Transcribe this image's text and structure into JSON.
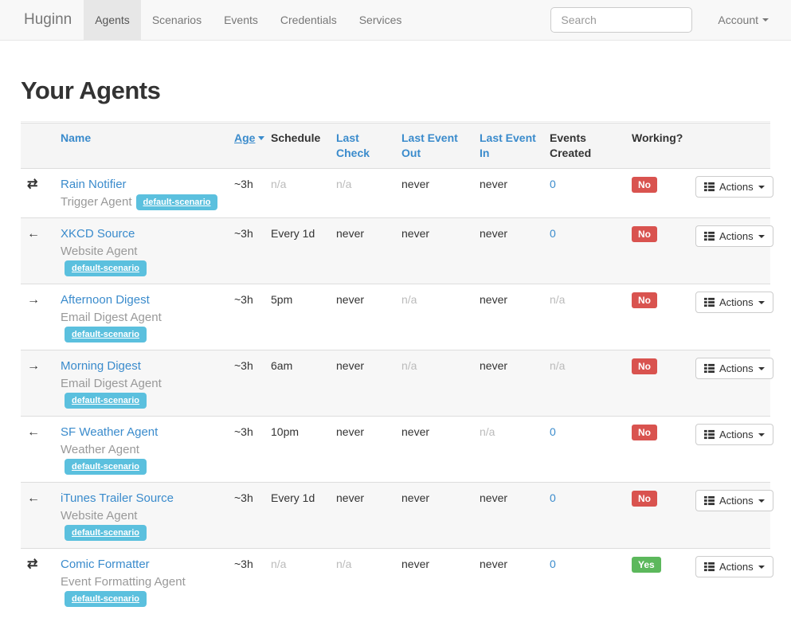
{
  "navbar": {
    "brand": "Huginn",
    "items": [
      {
        "label": "Agents",
        "active": true
      },
      {
        "label": "Scenarios",
        "active": false
      },
      {
        "label": "Events",
        "active": false
      },
      {
        "label": "Credentials",
        "active": false
      },
      {
        "label": "Services",
        "active": false
      }
    ],
    "search_placeholder": "Search",
    "account_label": "Account"
  },
  "page": {
    "title": "Your Agents"
  },
  "colors": {
    "link_blue": "#3a8bcc",
    "scenario_badge": "#5bc0de",
    "working_yes": "#5cb85c",
    "working_no": "#d9534f",
    "navbar_bg": "#f8f8f8",
    "stripe_bg": "#f7f7f7"
  },
  "icon_glyphs": {
    "bidirectional": "⇄",
    "incoming": "←",
    "outgoing": "→"
  },
  "table": {
    "actions_label": "Actions",
    "headers": [
      {
        "label": "Name",
        "link": true,
        "sorted": false,
        "nowrap": true
      },
      {
        "label": "Age",
        "link": true,
        "sorted": true,
        "nowrap": true
      },
      {
        "label": "Schedule",
        "link": false,
        "sorted": false,
        "nowrap": true
      },
      {
        "label": "Last Check",
        "link": true,
        "sorted": false,
        "nowrap": false
      },
      {
        "label": "Last Event Out",
        "link": true,
        "sorted": false,
        "nowrap": false
      },
      {
        "label": "Last Event In",
        "link": true,
        "sorted": false,
        "nowrap": false
      },
      {
        "label": "Events Created",
        "link": false,
        "sorted": false,
        "nowrap": false
      },
      {
        "label": "Working?",
        "link": false,
        "sorted": false,
        "nowrap": true
      }
    ],
    "rows": [
      {
        "direction": "bidirectional",
        "name": "Rain Notifier",
        "agent_type": "Trigger Agent",
        "scenario": "default-scenario",
        "age": {
          "text": "~3h"
        },
        "schedule": {
          "text": "n/a",
          "muted": true
        },
        "last_check": {
          "text": "n/a",
          "muted": true
        },
        "last_event_out": {
          "text": "never"
        },
        "last_event_in": {
          "text": "never"
        },
        "events_created": {
          "text": "0",
          "link": true
        },
        "working": {
          "text": "No",
          "status": "no"
        }
      },
      {
        "direction": "incoming",
        "name": "XKCD Source",
        "agent_type": "Website Agent",
        "scenario": "default-scenario",
        "age": {
          "text": "~3h"
        },
        "schedule": {
          "text": "Every 1d"
        },
        "last_check": {
          "text": "never"
        },
        "last_event_out": {
          "text": "never"
        },
        "last_event_in": {
          "text": "never"
        },
        "events_created": {
          "text": "0",
          "link": true
        },
        "working": {
          "text": "No",
          "status": "no"
        }
      },
      {
        "direction": "outgoing",
        "name": "Afternoon Digest",
        "agent_type": "Email Digest Agent",
        "scenario": "default-scenario",
        "age": {
          "text": "~3h"
        },
        "schedule": {
          "text": "5pm"
        },
        "last_check": {
          "text": "never"
        },
        "last_event_out": {
          "text": "n/a",
          "muted": true
        },
        "last_event_in": {
          "text": "never"
        },
        "events_created": {
          "text": "n/a",
          "muted": true
        },
        "working": {
          "text": "No",
          "status": "no"
        }
      },
      {
        "direction": "outgoing",
        "name": "Morning Digest",
        "agent_type": "Email Digest Agent",
        "scenario": "default-scenario",
        "age": {
          "text": "~3h"
        },
        "schedule": {
          "text": "6am"
        },
        "last_check": {
          "text": "never"
        },
        "last_event_out": {
          "text": "n/a",
          "muted": true
        },
        "last_event_in": {
          "text": "never"
        },
        "events_created": {
          "text": "n/a",
          "muted": true
        },
        "working": {
          "text": "No",
          "status": "no"
        }
      },
      {
        "direction": "incoming",
        "name": "SF Weather Agent",
        "agent_type": "Weather Agent",
        "scenario": "default-scenario",
        "age": {
          "text": "~3h"
        },
        "schedule": {
          "text": "10pm"
        },
        "last_check": {
          "text": "never"
        },
        "last_event_out": {
          "text": "never"
        },
        "last_event_in": {
          "text": "n/a",
          "muted": true
        },
        "events_created": {
          "text": "0",
          "link": true
        },
        "working": {
          "text": "No",
          "status": "no"
        }
      },
      {
        "direction": "incoming",
        "name": "iTunes Trailer Source",
        "agent_type": "Website Agent",
        "scenario": "default-scenario",
        "age": {
          "text": "~3h"
        },
        "schedule": {
          "text": "Every 1d"
        },
        "last_check": {
          "text": "never"
        },
        "last_event_out": {
          "text": "never"
        },
        "last_event_in": {
          "text": "never"
        },
        "events_created": {
          "text": "0",
          "link": true
        },
        "working": {
          "text": "No",
          "status": "no"
        }
      },
      {
        "direction": "bidirectional",
        "name": "Comic Formatter",
        "agent_type": "Event Formatting Agent",
        "scenario": "default-scenario",
        "age": {
          "text": "~3h"
        },
        "schedule": {
          "text": "n/a",
          "muted": true
        },
        "last_check": {
          "text": "n/a",
          "muted": true
        },
        "last_event_out": {
          "text": "never"
        },
        "last_event_in": {
          "text": "never"
        },
        "events_created": {
          "text": "0",
          "link": true
        },
        "working": {
          "text": "Yes",
          "status": "yes"
        }
      }
    ]
  }
}
